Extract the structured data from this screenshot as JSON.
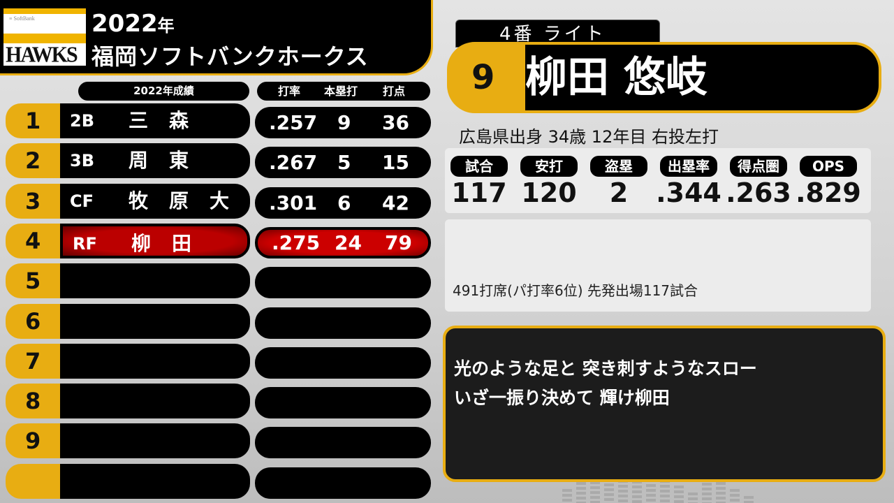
{
  "header": {
    "logo_top": "SoftBank",
    "logo_main": "HAWKS",
    "year": "2022",
    "year_suffix": "年",
    "team": "福岡ソフトバンクホークス"
  },
  "lineup_header": {
    "label": "2022年成績",
    "cols": [
      "打率",
      "本塁打",
      "打点"
    ]
  },
  "lineup": [
    {
      "order": "1",
      "pos": "2B",
      "name": "三森",
      "avg": ".257",
      "hr": "9",
      "rbi": "36"
    },
    {
      "order": "2",
      "pos": "3B",
      "name": "周東",
      "avg": ".267",
      "hr": "5",
      "rbi": "15"
    },
    {
      "order": "3",
      "pos": "CF",
      "name": "牧原大",
      "avg": ".301",
      "hr": "6",
      "rbi": "42"
    },
    {
      "order": "4",
      "pos": "RF",
      "name": "柳田",
      "avg": ".275",
      "hr": "24",
      "rbi": "79",
      "highlight": true
    },
    {
      "order": "5",
      "pos": "",
      "name": "",
      "avg": "",
      "hr": "",
      "rbi": ""
    },
    {
      "order": "6",
      "pos": "",
      "name": "",
      "avg": "",
      "hr": "",
      "rbi": ""
    },
    {
      "order": "7",
      "pos": "",
      "name": "",
      "avg": "",
      "hr": "",
      "rbi": ""
    },
    {
      "order": "8",
      "pos": "",
      "name": "",
      "avg": "",
      "hr": "",
      "rbi": ""
    },
    {
      "order": "9",
      "pos": "",
      "name": "",
      "avg": "",
      "hr": "",
      "rbi": ""
    },
    {
      "order": "",
      "pos": "",
      "name": "",
      "avg": "",
      "hr": "",
      "rbi": ""
    }
  ],
  "player": {
    "batting_slot": "4番 ライト",
    "number": "9",
    "name": "柳田 悠岐",
    "bio": "広島県出身 34歳 12年目 右投左打",
    "stats": [
      {
        "label": "試合",
        "value": "117"
      },
      {
        "label": "安打",
        "value": "120"
      },
      {
        "label": "盗塁",
        "value": "2"
      },
      {
        "label": "出塁率",
        "value": ".344"
      },
      {
        "label": "得点圏",
        "value": ".263"
      },
      {
        "label": "OPS",
        "value": ".829"
      }
    ],
    "note": "491打席(パ打率6位) 先発出場117試合",
    "lyrics": [
      "光のような足と 突き刺すようなスロー",
      "いざ一振り決めて 輝け柳田"
    ]
  },
  "colors": {
    "gold": "#e8ad12",
    "highlight": "#b00000",
    "panel": "#000000"
  }
}
